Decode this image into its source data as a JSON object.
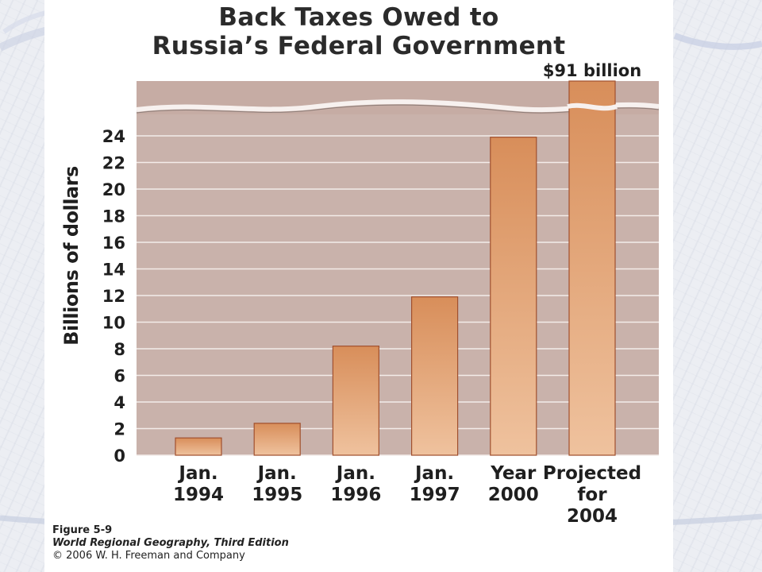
{
  "slide": {
    "title_line1": "Back Taxes Owed to",
    "title_line2": "Russia’s Federal Government",
    "figure_label": "Figure 5-9",
    "book_title": "World Regional Geography, Third Edition",
    "copyright": "© 2006 W. H. Freeman and Company"
  },
  "colors": {
    "plot_bg": "#c9b2ab",
    "bar_top": "#d88e5a",
    "bar_bottom": "#efc29e",
    "grid": "#f3ece9"
  },
  "chart_data": {
    "type": "bar",
    "title": "Back Taxes Owed to Russia’s Federal Government",
    "ylabel": "Billions of dollars",
    "xlabel": "",
    "categories": [
      [
        "Jan.",
        "1994"
      ],
      [
        "Jan.",
        "1995"
      ],
      [
        "Jan.",
        "1996"
      ],
      [
        "Jan.",
        "1997"
      ],
      [
        "Year",
        "2000"
      ],
      [
        "Projected",
        "for",
        "2004"
      ]
    ],
    "values": [
      1.3,
      2.4,
      8.2,
      11.9,
      23.9,
      91
    ],
    "ylim": [
      0,
      24
    ],
    "yticks": [
      0,
      2,
      4,
      6,
      8,
      10,
      12,
      14,
      16,
      18,
      20,
      22,
      24
    ],
    "axis_break": true,
    "annotations": [
      {
        "category_index": 5,
        "text": "$91 billion"
      }
    ],
    "grid": true
  }
}
